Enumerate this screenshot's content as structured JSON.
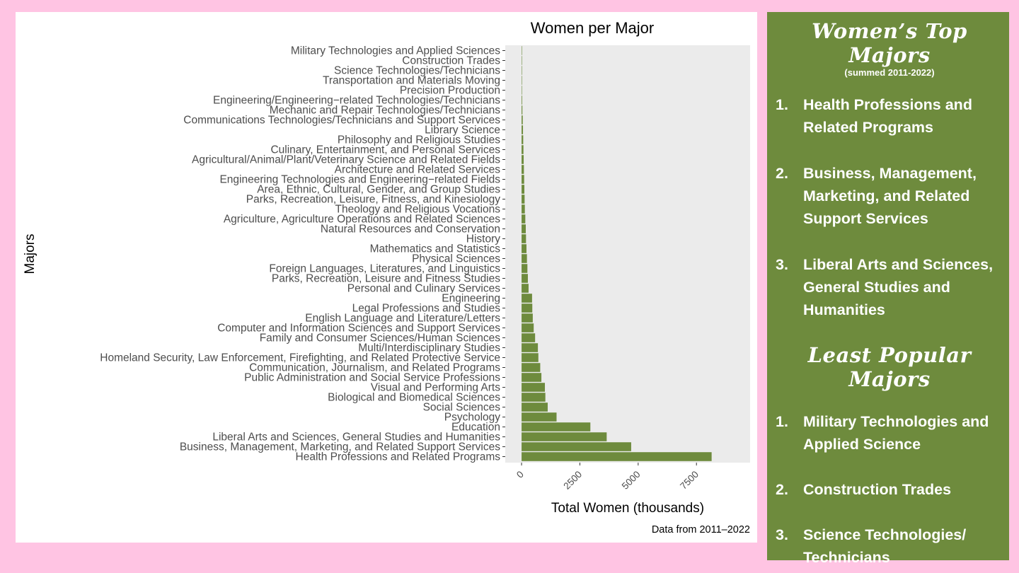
{
  "chart_data": {
    "type": "bar",
    "orientation": "horizontal",
    "title": "Women per Major",
    "xlabel": "Total Women (thousands)",
    "ylabel": "Majors",
    "caption": "Data from 2011–2022",
    "xlim": [
      -700,
      9800
    ],
    "xticks": [
      0,
      2500,
      5000,
      7500
    ],
    "bar_color": "#6e8b3d",
    "panel_color": "#ebebeb",
    "categories": [
      "Military Technologies and Applied Sciences",
      "Construction Trades",
      "Science Technologies/Technicians",
      "Transportation and Materials Moving",
      "Precision Production",
      "Engineering/Engineering−related Technologies/Technicians",
      "Mechanic and Repair Technologies/Technicians",
      "Communications Technologies/Technicians and Support Services",
      "Library Science",
      "Philosophy and Religious Studies",
      "Culinary, Entertainment, and Personal Services",
      "Agricultural/Animal/Plant/Veterinary Science and Related Fields",
      "Architecture and Related Services",
      "Engineering Technologies and Engineering−related Fields",
      "Area, Ethnic, Cultural, Gender, and Group Studies",
      "Parks, Recreation, Leisure, Fitness, and Kinesiology",
      "Theology and Religious Vocations",
      "Agriculture, Agriculture Operations and Related Sciences",
      "Natural Resources and Conservation",
      "History",
      "Mathematics and Statistics",
      "Physical Sciences",
      "Foreign Languages, Literatures, and Linguistics",
      "Parks, Recreation, Leisure and Fitness Studies",
      "Personal and Culinary Services",
      "Engineering",
      "Legal Professions and Studies",
      "English Language and Literature/Letters",
      "Computer and Information Sciences and Support Services",
      "Family and Consumer Sciences/Human Sciences",
      "Multi/Interdisciplinary Studies",
      "Homeland Security, Law Enforcement, Firefighting, and Related Protective Service",
      "Communication, Journalism, and Related Programs",
      "Public Administration and Social Service Professions",
      "Visual and Performing Arts",
      "Biological and Biomedical Sciences",
      "Social Sciences",
      "Psychology",
      "Education",
      "Liberal Arts and Sciences, General Studies and Humanities",
      "Business, Management, Marketing, and Related Support Services",
      "Health Professions and Related Programs"
    ],
    "values": [
      2,
      5,
      8,
      12,
      18,
      25,
      35,
      50,
      60,
      70,
      80,
      90,
      100,
      110,
      120,
      130,
      140,
      160,
      180,
      190,
      210,
      230,
      250,
      270,
      300,
      450,
      460,
      480,
      520,
      580,
      700,
      720,
      800,
      850,
      1000,
      1020,
      1120,
      1500,
      2950,
      3650,
      4700,
      8150
    ]
  },
  "sidebar": {
    "top_title": "Women’s Top Majors",
    "top_subtitle": "(summed 2011-2022)",
    "top_majors": [
      {
        "num": "1.",
        "text": "Health Professions and Related Programs"
      },
      {
        "num": "2.",
        "text": "Business, Management, Marketing, and Related Support Services"
      },
      {
        "num": "3.",
        "text": "Liberal Arts and Sciences, General Studies and Humanities"
      }
    ],
    "least_title": "Least Popular Majors",
    "least_majors": [
      {
        "num": "1.",
        "text": "Military Technologies and Applied Science"
      },
      {
        "num": "2.",
        "text": "Construction Trades"
      },
      {
        "num": "3.",
        "text": "Science Technologies/ Technicians"
      }
    ]
  }
}
